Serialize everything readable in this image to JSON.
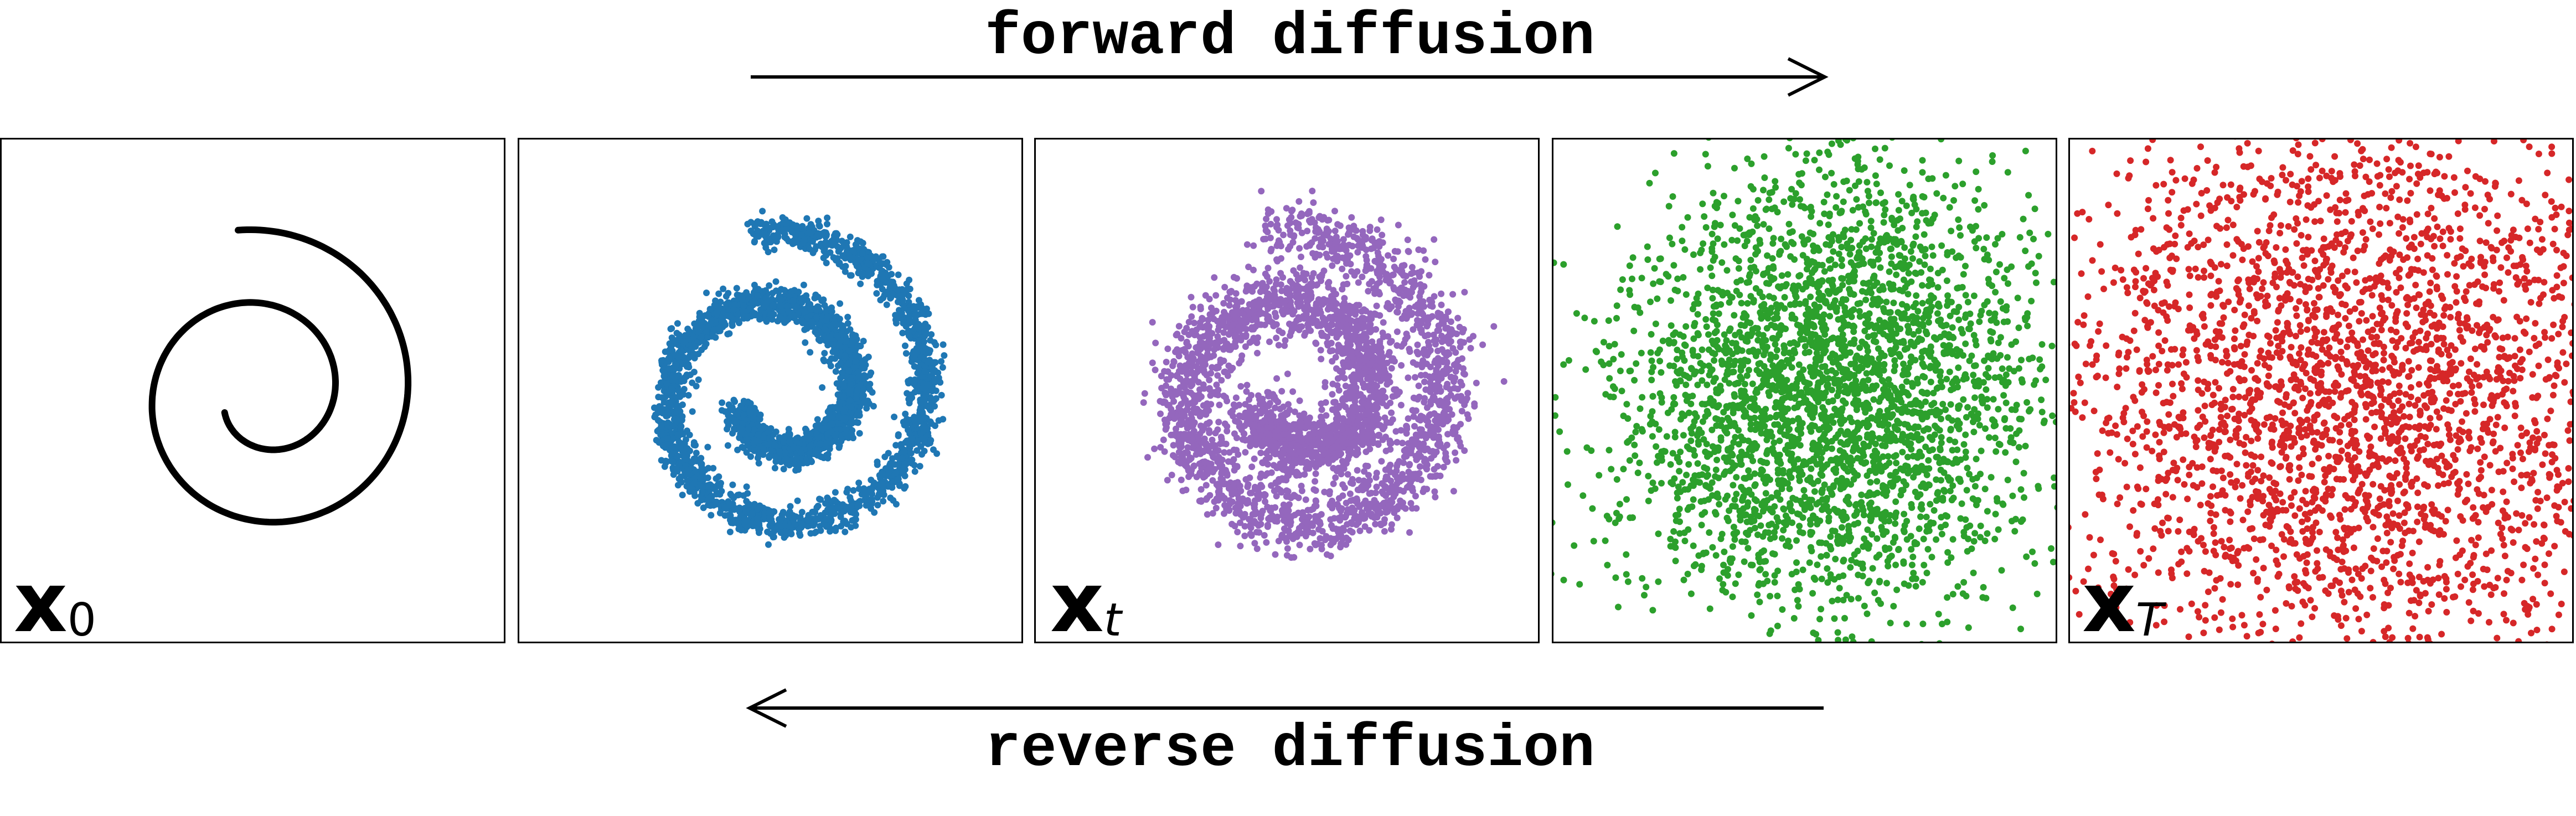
{
  "forward": {
    "label": "forward diffusion",
    "direction": "right",
    "color": "#000000"
  },
  "reverse": {
    "label": "reverse diffusion",
    "direction": "left",
    "color": "#000000"
  },
  "panels": [
    {
      "label_symbol": "x",
      "label_subscript": "0",
      "subscript_italic": false,
      "point_color": "#000000",
      "style": "curve",
      "noise": 0.0
    },
    {
      "label_symbol": "",
      "label_subscript": "",
      "subscript_italic": false,
      "point_color": "#1f77b4",
      "style": "points",
      "noise": 0.035
    },
    {
      "label_symbol": "x",
      "label_subscript": "t",
      "subscript_italic": true,
      "point_color": "#9467bd",
      "style": "points",
      "noise": 0.07
    },
    {
      "label_symbol": "",
      "label_subscript": "",
      "subscript_italic": false,
      "point_color": "#2ca02c",
      "style": "points",
      "noise": 0.3
    },
    {
      "label_symbol": "x",
      "label_subscript": "T",
      "subscript_italic": true,
      "point_color": "#d62728",
      "style": "points",
      "noise": 0.55
    }
  ]
}
